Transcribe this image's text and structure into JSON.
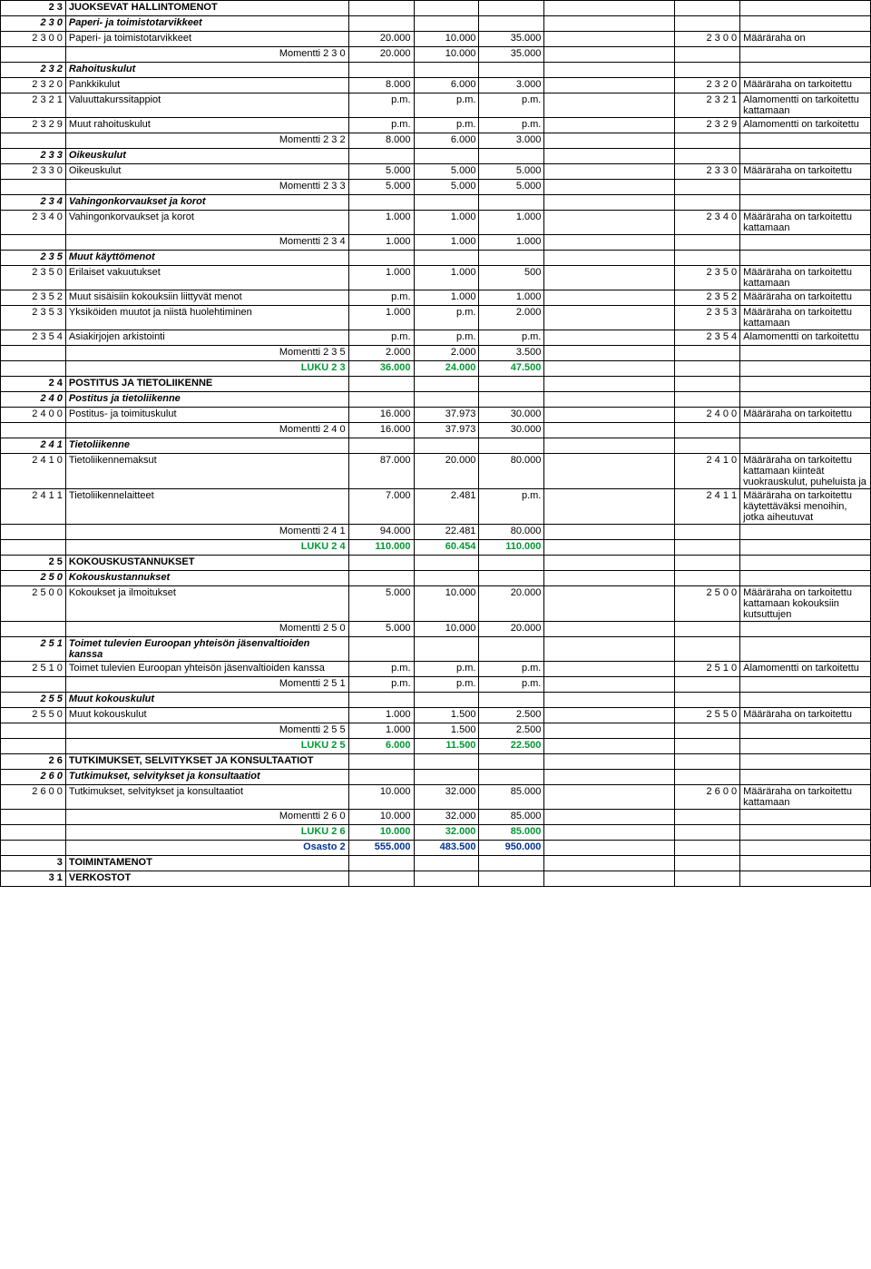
{
  "rows": [
    {
      "c": "2 3",
      "d": "JUOKSEVAT HALLINTOMENOT",
      "bold": true
    },
    {
      "c": "2 3 0",
      "d": "Paperi- ja toimistotarvikkeet",
      "bold": true,
      "italic": true
    },
    {
      "c": "2 3 0 0",
      "d": "Paperi- ja toimistotarvikkeet",
      "v1": "20.000",
      "v2": "10.000",
      "v3": "35.000",
      "mc": "2 3 0 0",
      "n": "Määräraha on"
    },
    {
      "rl": "Momentti 2 3 0",
      "v1": "20.000",
      "v2": "10.000",
      "v3": "35.000"
    },
    {
      "c": "2 3 2",
      "d": "Rahoituskulut",
      "bold": true,
      "italic": true
    },
    {
      "c": "2 3 2 0",
      "d": "Pankkikulut",
      "v1": "8.000",
      "v2": "6.000",
      "v3": "3.000",
      "mc": "2 3 2 0",
      "n": "Määräraha on tarkoitettu"
    },
    {
      "c": "2 3 2 1",
      "d": "Valuuttakurssitappiot",
      "v1": "p.m.",
      "v2": "p.m.",
      "v3": "p.m.",
      "mc": "2 3 2 1",
      "n": "Alamomentti on tarkoitettu kattamaan"
    },
    {
      "c": "2 3 2 9",
      "d": "Muut rahoituskulut",
      "v1": "p.m.",
      "v2": "p.m.",
      "v3": "p.m.",
      "mc": "2 3 2 9",
      "n": "Alamomentti on tarkoitettu"
    },
    {
      "rl": "Momentti 2 3 2",
      "v1": "8.000",
      "v2": "6.000",
      "v3": "3.000"
    },
    {
      "c": "2 3 3",
      "d": "Oikeuskulut",
      "bold": true,
      "italic": true
    },
    {
      "c": "2 3 3 0",
      "d": "Oikeuskulut",
      "v1": "5.000",
      "v2": "5.000",
      "v3": "5.000",
      "mc": "2 3 3 0",
      "n": "Määräraha on tarkoitettu"
    },
    {
      "rl": "Momentti 2 3 3",
      "v1": "5.000",
      "v2": "5.000",
      "v3": "5.000"
    },
    {
      "c": "2 3 4",
      "d": "Vahingonkorvaukset ja korot",
      "bold": true,
      "italic": true
    },
    {
      "c": "2 3 4 0",
      "d": "Vahingonkorvaukset ja korot",
      "v1": "1.000",
      "v2": "1.000",
      "v3": "1.000",
      "mc": "2 3 4 0",
      "n": "Määräraha on tarkoitettu kattamaan"
    },
    {
      "rl": "Momentti 2 3 4",
      "v1": "1.000",
      "v2": "1.000",
      "v3": "1.000"
    },
    {
      "c": "2 3 5",
      "d": "Muut käyttömenot",
      "bold": true,
      "italic": true
    },
    {
      "c": "2 3 5 0",
      "d": "Erilaiset vakuutukset",
      "v1": "1.000",
      "v2": "1.000",
      "v3": "500",
      "mc": "2 3 5 0",
      "n": "Määräraha on tarkoitettu kattamaan"
    },
    {
      "c": "2 3 5 2",
      "d": "Muut sisäisiin kokouksiin liittyvät menot",
      "v1": "p.m.",
      "v2": "1.000",
      "v3": "1.000",
      "mc": "2 3 5 2",
      "n": "Määräraha on tarkoitettu"
    },
    {
      "c": "2 3 5 3",
      "d": "Yksiköiden muutot ja niistä huolehtiminen",
      "v1": "1.000",
      "v2": "p.m.",
      "v3": "2.000",
      "mc": "2 3 5 3",
      "n": "Määräraha on tarkoitettu kattamaan"
    },
    {
      "c": "2 3 5 4",
      "d": "Asiakirjojen arkistointi",
      "v1": "p.m.",
      "v2": "p.m.",
      "v3": "p.m.",
      "mc": "2 3 5 4",
      "n": "Alamomentti on tarkoitettu"
    },
    {
      "rl": "Momentti 2 3 5",
      "v1": "2.000",
      "v2": "2.000",
      "v3": "3.500"
    },
    {
      "rl": "LUKU 2 3",
      "v1": "36.000",
      "v2": "24.000",
      "v3": "47.500",
      "green": true
    },
    {
      "c": "2 4",
      "d": "POSTITUS JA TIETOLIIKENNE",
      "bold": true
    },
    {
      "c": "2 4 0",
      "d": "Postitus ja tietoliikenne",
      "bold": true,
      "italic": true
    },
    {
      "c": "2 4 0 0",
      "d": "Postitus- ja toimituskulut",
      "v1": "16.000",
      "v2": "37.973",
      "v3": "30.000",
      "mc": "2 4 0 0",
      "n": "Määräraha on tarkoitettu"
    },
    {
      "rl": "Momentti 2 4 0",
      "v1": "16.000",
      "v2": "37.973",
      "v3": "30.000"
    },
    {
      "c": "2 4 1",
      "d": "Tietoliikenne",
      "bold": true,
      "italic": true
    },
    {
      "c": "2 4 1 0",
      "d": "Tietoliikennemaksut",
      "v1": "87.000",
      "v2": "20.000",
      "v3": "80.000",
      "mc": "2 4 1 0",
      "n": "Määräraha on tarkoitettu kattamaan kiinteät vuokrauskulut, puheluista ja"
    },
    {
      "c": "2 4 1 1",
      "d": "Tietoliikennelaitteet",
      "v1": "7.000",
      "v2": "2.481",
      "v3": "p.m.",
      "mc": "2 4 1 1",
      "n": "Määräraha on tarkoitettu käytettäväksi menoihin, jotka aiheutuvat"
    },
    {
      "rl": "Momentti 2 4 1",
      "v1": "94.000",
      "v2": "22.481",
      "v3": "80.000"
    },
    {
      "rl": "LUKU 2 4",
      "v1": "110.000",
      "v2": "60.454",
      "v3": "110.000",
      "green": true
    },
    {
      "c": "2 5",
      "d": "KOKOUSKUSTANNUKSET",
      "bold": true
    },
    {
      "c": "2 5 0",
      "d": "Kokouskustannukset",
      "bold": true,
      "italic": true
    },
    {
      "c": "2 5 0 0",
      "d": "Kokoukset ja ilmoitukset",
      "v1": "5.000",
      "v2": "10.000",
      "v3": "20.000",
      "mc": "2 5 0 0",
      "n": "Määräraha on tarkoitettu kattamaan kokouksiin kutsuttujen"
    },
    {
      "rl": "Momentti 2 5 0",
      "v1": "5.000",
      "v2": "10.000",
      "v3": "20.000"
    },
    {
      "c": "2 5 1",
      "d": "Toimet tulevien Euroopan yhteisön jäsenvaltioiden kanssa",
      "bold": true,
      "italic": true
    },
    {
      "c": "2 5 1 0",
      "d": "Toimet tulevien Euroopan yhteisön jäsenvaltioiden kanssa",
      "v1": "p.m.",
      "v2": "p.m.",
      "v3": "p.m.",
      "mc": "2 5 1 0",
      "n": "Alamomentti on tarkoitettu"
    },
    {
      "rl": "Momentti 2 5 1",
      "v1": "p.m.",
      "v2": "p.m.",
      "v3": "p.m."
    },
    {
      "c": "2 5 5",
      "d": "Muut kokouskulut",
      "bold": true,
      "italic": true
    },
    {
      "c": "2 5 5 0",
      "d": "Muut kokouskulut",
      "v1": "1.000",
      "v2": "1.500",
      "v3": "2.500",
      "mc": "2 5 5 0",
      "n": "Määräraha on tarkoitettu"
    },
    {
      "rl": "Momentti 2 5 5",
      "v1": "1.000",
      "v2": "1.500",
      "v3": "2.500"
    },
    {
      "rl": "LUKU 2 5",
      "v1": "6.000",
      "v2": "11.500",
      "v3": "22.500",
      "green": true
    },
    {
      "c": "2 6",
      "d": "TUTKIMUKSET, SELVITYKSET JA KONSULTAATIOT",
      "bold": true
    },
    {
      "c": "2 6 0",
      "d": "Tutkimukset, selvitykset ja konsultaatiot",
      "bold": true,
      "italic": true
    },
    {
      "c": "2 6 0 0",
      "d": "Tutkimukset, selvitykset ja konsultaatiot",
      "v1": "10.000",
      "v2": "32.000",
      "v3": "85.000",
      "mc": "2 6 0 0",
      "n": "Määräraha on tarkoitettu kattamaan"
    },
    {
      "rl": "Momentti 2 6 0",
      "v1": "10.000",
      "v2": "32.000",
      "v3": "85.000"
    },
    {
      "rl": "LUKU 2 6",
      "v1": "10.000",
      "v2": "32.000",
      "v3": "85.000",
      "green": true
    },
    {
      "rl": "Osasto 2",
      "v1": "555.000",
      "v2": "483.500",
      "v3": "950.000",
      "blue": true
    },
    {
      "c": "3",
      "d": "TOIMINTAMENOT",
      "bold": true
    },
    {
      "c": "3 1",
      "d": "VERKOSTOT",
      "bold": true
    }
  ]
}
